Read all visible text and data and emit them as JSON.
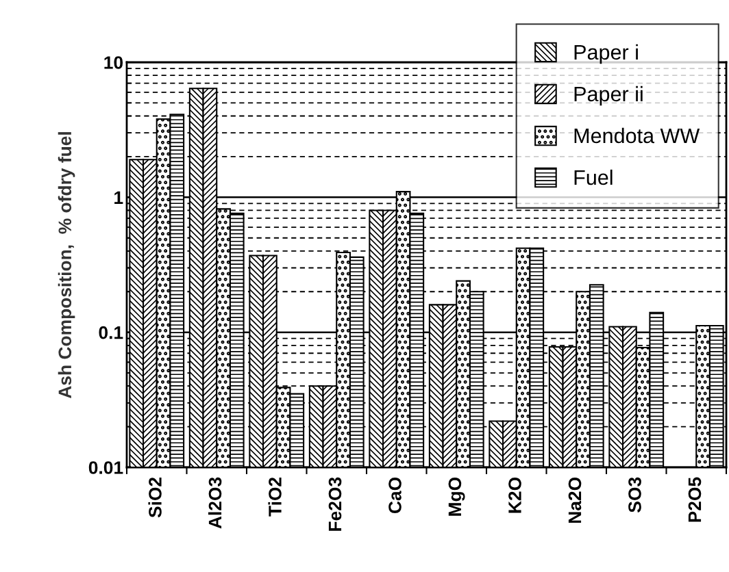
{
  "chart_data": {
    "type": "bar",
    "ylabel": "Ash Composition,  % ofdry fuel",
    "categories": [
      "SiO2",
      "Al2O3",
      "TiO2",
      "Fe2O3",
      "CaO",
      "MgO",
      "K2O",
      "Na2O",
      "SO3",
      "P2O5"
    ],
    "series": [
      {
        "name": "Paper i",
        "color": "#000000",
        "values": [
          1.9,
          6.4,
          0.37,
          0.04,
          0.8,
          0.16,
          0.022,
          0.078,
          0.11,
          null
        ]
      },
      {
        "name": "Paper ii",
        "color": "#000000",
        "values": [
          1.9,
          6.4,
          0.37,
          0.04,
          0.8,
          0.16,
          0.022,
          0.078,
          0.11,
          null
        ]
      },
      {
        "name": "Mendota WW",
        "color": "#000000",
        "values": [
          3.8,
          0.82,
          0.039,
          0.39,
          1.1,
          0.24,
          0.42,
          0.2,
          0.077,
          0.112
        ]
      },
      {
        "name": "Fuel",
        "color": "#000000",
        "values": [
          4.1,
          0.76,
          0.035,
          0.36,
          0.76,
          0.2,
          0.42,
          0.225,
          0.14,
          0.112
        ]
      }
    ],
    "log": "y",
    "ylim": [
      0.01,
      10
    ],
    "yticks": [
      0.01,
      0.1,
      1,
      10
    ],
    "grid": "y",
    "legend": "top right"
  }
}
